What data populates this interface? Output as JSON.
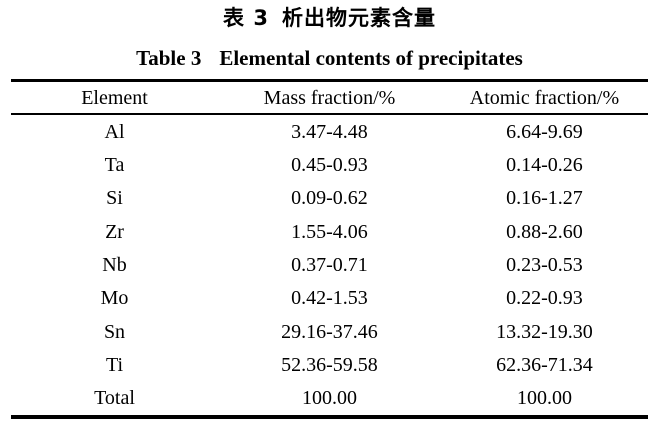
{
  "colors": {
    "background": "#ffffff",
    "text": "#000000",
    "rule": "#000000"
  },
  "caption": {
    "zh_label": "表 3",
    "zh_title": "析出物元素含量",
    "en_label": "Table 3",
    "en_title": "Elemental contents of precipitates"
  },
  "table": {
    "headers": [
      "Element",
      "Mass fraction/%",
      "Atomic fraction/%"
    ],
    "rows": [
      {
        "element": "Al",
        "mass": "3.47-4.48",
        "atomic": "6.64-9.69"
      },
      {
        "element": "Ta",
        "mass": "0.45-0.93",
        "atomic": "0.14-0.26"
      },
      {
        "element": "Si",
        "mass": "0.09-0.62",
        "atomic": "0.16-1.27"
      },
      {
        "element": "Zr",
        "mass": "1.55-4.06",
        "atomic": "0.88-2.60"
      },
      {
        "element": "Nb",
        "mass": "0.37-0.71",
        "atomic": "0.23-0.53"
      },
      {
        "element": "Mo",
        "mass": "0.42-1.53",
        "atomic": "0.22-0.93"
      },
      {
        "element": "Sn",
        "mass": "29.16-37.46",
        "atomic": "13.32-19.30"
      },
      {
        "element": "Ti",
        "mass": "52.36-59.58",
        "atomic": "62.36-71.34"
      },
      {
        "element": "Total",
        "mass": "100.00",
        "atomic": "100.00"
      }
    ]
  },
  "chart_data": {
    "type": "table",
    "title_zh": "表 3 析出物元素含量",
    "title_en": "Table 3 Elemental contents of precipitates",
    "columns": [
      "Element",
      "Mass fraction/%",
      "Atomic fraction/%"
    ],
    "rows": [
      [
        "Al",
        "3.47-4.48",
        "6.64-9.69"
      ],
      [
        "Ta",
        "0.45-0.93",
        "0.14-0.26"
      ],
      [
        "Si",
        "0.09-0.62",
        "0.16-1.27"
      ],
      [
        "Zr",
        "1.55-4.06",
        "0.88-2.60"
      ],
      [
        "Nb",
        "0.37-0.71",
        "0.23-0.53"
      ],
      [
        "Mo",
        "0.42-1.53",
        "0.22-0.93"
      ],
      [
        "Sn",
        "29.16-37.46",
        "13.32-19.30"
      ],
      [
        "Ti",
        "52.36-59.58",
        "62.36-71.34"
      ],
      [
        "Total",
        "100.00",
        "100.00"
      ]
    ]
  }
}
